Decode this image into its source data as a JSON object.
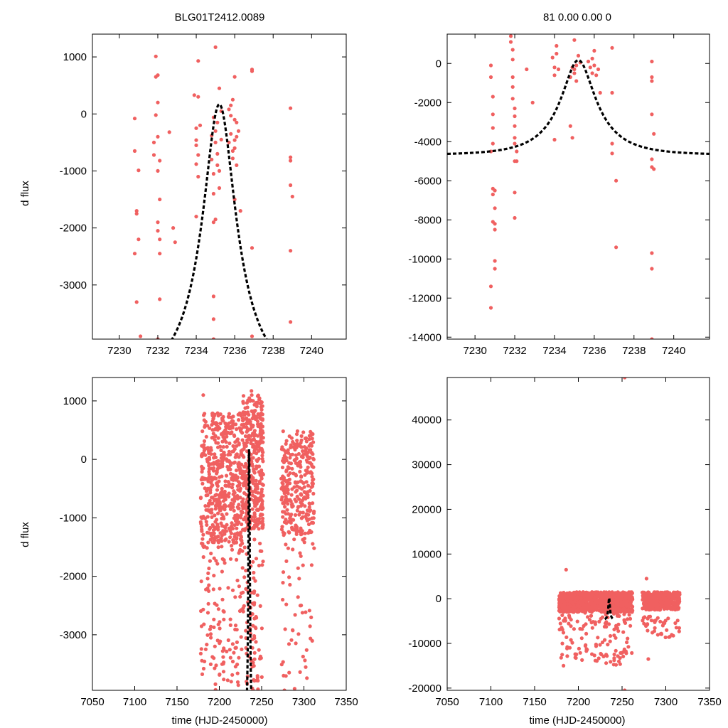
{
  "titles": {
    "left": "BLG01T2412.0089",
    "right": "81  0.00  0.00  0"
  },
  "point_color": "#f06060",
  "model_color": "#000000",
  "chart_data": [
    {
      "type": "scatter",
      "title": "BLG01T2412.0089",
      "xlabel": "",
      "ylabel": "d flux",
      "xlim": [
        7228.6,
        7241.8
      ],
      "ylim": [
        -3950,
        1400
      ],
      "xticks": [
        7230,
        7232,
        7234,
        7236,
        7238,
        7240
      ],
      "yticks": [
        -3000,
        -2000,
        -1000,
        0,
        1000
      ],
      "grid": false,
      "model": {
        "type": "paczynski",
        "t0": 7235.2,
        "u0": 0.36,
        "tE": 2.4,
        "base": -4680,
        "amp": 4850
      },
      "points": [
        [
          7230.8,
          -80
        ],
        [
          7230.8,
          -650
        ],
        [
          7230.9,
          -1700
        ],
        [
          7230.9,
          -1750
        ],
        [
          7230.8,
          -2450
        ],
        [
          7230.9,
          -3300
        ],
        [
          7231.0,
          -990
        ],
        [
          7231.0,
          -2200
        ],
        [
          7231.1,
          -3900
        ],
        [
          7231.8,
          -720
        ],
        [
          7231.8,
          -500
        ],
        [
          7231.9,
          1010
        ],
        [
          7231.9,
          650
        ],
        [
          7231.9,
          -20
        ],
        [
          7232.0,
          680
        ],
        [
          7232.0,
          200
        ],
        [
          7232.0,
          -400
        ],
        [
          7232.0,
          -1000
        ],
        [
          7232.1,
          -820
        ],
        [
          7232.1,
          -1500
        ],
        [
          7232.0,
          -1900
        ],
        [
          7232.0,
          -2050
        ],
        [
          7232.1,
          -2200
        ],
        [
          7232.1,
          -2450
        ],
        [
          7232.1,
          -3250
        ],
        [
          7232.0,
          -3950
        ],
        [
          7232.6,
          -320
        ],
        [
          7232.8,
          -2000
        ],
        [
          7232.9,
          -2250
        ],
        [
          7233.9,
          330
        ],
        [
          7234.0,
          -250
        ],
        [
          7234.0,
          -550
        ],
        [
          7234.0,
          -880
        ],
        [
          7234.1,
          930
        ],
        [
          7234.1,
          300
        ],
        [
          7234.0,
          -1800
        ],
        [
          7234.1,
          -1100
        ],
        [
          7234.0,
          -460
        ],
        [
          7234.1,
          -720
        ],
        [
          7234.2,
          -200
        ],
        [
          7234.8,
          -800
        ],
        [
          7234.8,
          -380
        ],
        [
          7234.9,
          -60
        ],
        [
          7234.9,
          -1050
        ],
        [
          7234.9,
          -1400
        ],
        [
          7234.9,
          -1900
        ],
        [
          7234.9,
          -3200
        ],
        [
          7234.9,
          -3600
        ],
        [
          7235.0,
          1170
        ],
        [
          7235.0,
          -1850
        ],
        [
          7235.0,
          -500
        ],
        [
          7235.0,
          -300
        ],
        [
          7235.1,
          -900
        ],
        [
          7235.1,
          -700
        ],
        [
          7235.1,
          -150
        ],
        [
          7235.2,
          450
        ],
        [
          7235.2,
          -1300
        ],
        [
          7235.2,
          -1000
        ],
        [
          7235.3,
          50
        ],
        [
          7235.3,
          -450
        ],
        [
          7234.9,
          -3950
        ],
        [
          7235.7,
          80
        ],
        [
          7235.7,
          -500
        ],
        [
          7235.8,
          150
        ],
        [
          7235.8,
          -30
        ],
        [
          7235.8,
          -350
        ],
        [
          7235.9,
          -650
        ],
        [
          7235.9,
          -780
        ],
        [
          7235.9,
          250
        ],
        [
          7236.0,
          650
        ],
        [
          7236.0,
          -100
        ],
        [
          7236.0,
          -460
        ],
        [
          7236.0,
          -600
        ],
        [
          7236.0,
          -1500
        ],
        [
          7236.1,
          -150
        ],
        [
          7236.1,
          -400
        ],
        [
          7236.1,
          -900
        ],
        [
          7236.2,
          -300
        ],
        [
          7236.3,
          -1700
        ],
        [
          7236.9,
          780
        ],
        [
          7236.9,
          750
        ],
        [
          7236.9,
          -2350
        ],
        [
          7236.9,
          -3900
        ],
        [
          7238.9,
          100
        ],
        [
          7238.9,
          -760
        ],
        [
          7238.9,
          -820
        ],
        [
          7238.9,
          -1250
        ],
        [
          7239.0,
          -1450
        ],
        [
          7238.9,
          -2400
        ],
        [
          7238.9,
          -3650
        ]
      ]
    },
    {
      "type": "scatter",
      "title": "81  0.00  0.00  0",
      "xlabel": "",
      "ylabel": "",
      "xlim": [
        7228.6,
        7241.8
      ],
      "ylim": [
        -14100,
        1500
      ],
      "xticks": [
        7230,
        7232,
        7234,
        7236,
        7238,
        7240
      ],
      "yticks": [
        -14000,
        -12000,
        -10000,
        -8000,
        -6000,
        -4000,
        -2000,
        0
      ],
      "grid": false,
      "model": {
        "type": "paczynski",
        "t0": 7235.2,
        "u0": 0.36,
        "tE": 2.4,
        "base": -4680,
        "amp": 4850
      },
      "points": [
        [
          7230.8,
          -100
        ],
        [
          7230.8,
          -700
        ],
        [
          7230.9,
          -1700
        ],
        [
          7230.9,
          -2600
        ],
        [
          7230.9,
          -3300
        ],
        [
          7230.9,
          -4100
        ],
        [
          7230.8,
          -4500
        ],
        [
          7230.9,
          -6400
        ],
        [
          7230.9,
          -6700
        ],
        [
          7231.0,
          -6500
        ],
        [
          7231.0,
          -7400
        ],
        [
          7230.9,
          -8100
        ],
        [
          7231.0,
          -8200
        ],
        [
          7231.0,
          -8500
        ],
        [
          7231.0,
          -10100
        ],
        [
          7231.0,
          -10500
        ],
        [
          7230.8,
          -11400
        ],
        [
          7230.8,
          -12500
        ],
        [
          7231.8,
          1400
        ],
        [
          7231.8,
          1100
        ],
        [
          7231.9,
          700
        ],
        [
          7231.9,
          200
        ],
        [
          7231.9,
          -700
        ],
        [
          7231.9,
          -1200
        ],
        [
          7231.9,
          -1800
        ],
        [
          7232.0,
          -2300
        ],
        [
          7232.0,
          -2700
        ],
        [
          7232.0,
          -3200
        ],
        [
          7232.0,
          -3800
        ],
        [
          7232.0,
          -4100
        ],
        [
          7232.1,
          -4500
        ],
        [
          7232.0,
          -5000
        ],
        [
          7232.1,
          -5000
        ],
        [
          7232.0,
          -6600
        ],
        [
          7232.0,
          -7900
        ],
        [
          7232.6,
          -300
        ],
        [
          7232.9,
          -2000
        ],
        [
          7233.9,
          300
        ],
        [
          7234.0,
          -200
        ],
        [
          7234.0,
          -600
        ],
        [
          7234.0,
          -3900
        ],
        [
          7234.1,
          900
        ],
        [
          7234.1,
          500
        ],
        [
          7234.2,
          -300
        ],
        [
          7234.8,
          -700
        ],
        [
          7234.8,
          -3200
        ],
        [
          7234.9,
          -3800
        ],
        [
          7234.9,
          -200
        ],
        [
          7235.0,
          1200
        ],
        [
          7235.0,
          -300
        ],
        [
          7235.0,
          -500
        ],
        [
          7235.1,
          -900
        ],
        [
          7235.1,
          -100
        ],
        [
          7235.2,
          400
        ],
        [
          7235.3,
          50
        ],
        [
          7235.7,
          100
        ],
        [
          7235.8,
          -200
        ],
        [
          7235.9,
          -500
        ],
        [
          7235.9,
          250
        ],
        [
          7236.0,
          650
        ],
        [
          7236.0,
          -100
        ],
        [
          7236.1,
          -600
        ],
        [
          7236.2,
          -300
        ],
        [
          7236.3,
          -1500
        ],
        [
          7236.9,
          800
        ],
        [
          7236.9,
          -1500
        ],
        [
          7236.9,
          -4100
        ],
        [
          7236.9,
          -4600
        ],
        [
          7237.1,
          -6000
        ],
        [
          7237.1,
          -9400
        ],
        [
          7238.9,
          100
        ],
        [
          7238.9,
          -700
        ],
        [
          7238.9,
          -900
        ],
        [
          7238.9,
          -2600
        ],
        [
          7239.0,
          -3600
        ],
        [
          7238.9,
          -4900
        ],
        [
          7238.9,
          -5300
        ],
        [
          7239.0,
          -5400
        ],
        [
          7238.9,
          -9700
        ],
        [
          7238.9,
          -10500
        ],
        [
          7238.9,
          -14100
        ]
      ]
    },
    {
      "type": "scatter",
      "title": "",
      "xlabel": "time (HJD-2450000)",
      "ylabel": "d flux",
      "xlim": [
        7050,
        7350
      ],
      "ylim": [
        -3950,
        1400
      ],
      "xticks": [
        7050,
        7100,
        7150,
        7200,
        7250,
        7300,
        7350
      ],
      "yticks": [
        -3000,
        -2000,
        -1000,
        0,
        1000
      ],
      "grid": false,
      "model": {
        "type": "paczynski",
        "t0": 7235.2,
        "u0": 0.36,
        "tE": 2.4,
        "base": -4680,
        "amp": 4850
      },
      "clusters": [
        {
          "x": [
            7178,
            7228
          ],
          "y": [
            -1500,
            800
          ],
          "n": 520,
          "seed": 11
        },
        {
          "x": [
            7178,
            7228
          ],
          "y": [
            -3950,
            -1500
          ],
          "n": 120,
          "seed": 12
        },
        {
          "x": [
            7228,
            7252
          ],
          "y": [
            -1200,
            1100
          ],
          "n": 360,
          "seed": 13
        },
        {
          "x": [
            7228,
            7252
          ],
          "y": [
            -3950,
            -1200
          ],
          "n": 80,
          "seed": 14
        },
        {
          "x": [
            7273,
            7312
          ],
          "y": [
            -1300,
            500
          ],
          "n": 300,
          "seed": 15
        },
        {
          "x": [
            7273,
            7312
          ],
          "y": [
            -3950,
            -1300
          ],
          "n": 50,
          "seed": 16
        }
      ],
      "points": [
        [
          7181,
          1100
        ],
        [
          7238,
          1170
        ],
        [
          7276,
          -3700
        ],
        [
          7277,
          -3950
        ],
        [
          7232,
          -3800
        ],
        [
          7240,
          -3950
        ],
        [
          7312,
          -1520
        ]
      ]
    },
    {
      "type": "scatter",
      "title": "",
      "xlabel": "time (HJD-2450000)",
      "ylabel": "",
      "xlim": [
        7050,
        7350
      ],
      "ylim": [
        -20500,
        49500
      ],
      "xticks": [
        7050,
        7100,
        7150,
        7200,
        7250,
        7300,
        7350
      ],
      "yticks": [
        -20000,
        -10000,
        0,
        10000,
        20000,
        30000,
        40000
      ],
      "grid": false,
      "model": {
        "type": "paczynski",
        "t0": 7235.2,
        "u0": 0.36,
        "tE": 2.4,
        "base": -4680,
        "amp": 4850
      },
      "clusters": [
        {
          "x": [
            7178,
            7228
          ],
          "y": [
            -3000,
            1500
          ],
          "n": 520,
          "seed": 21
        },
        {
          "x": [
            7178,
            7228
          ],
          "y": [
            -14000,
            -3000
          ],
          "n": 70,
          "seed": 22
        },
        {
          "x": [
            7228,
            7262
          ],
          "y": [
            -3000,
            1500
          ],
          "n": 380,
          "seed": 23
        },
        {
          "x": [
            7228,
            7262
          ],
          "y": [
            -15000,
            -3000
          ],
          "n": 60,
          "seed": 24
        },
        {
          "x": [
            7273,
            7316
          ],
          "y": [
            -2500,
            1500
          ],
          "n": 360,
          "seed": 25
        },
        {
          "x": [
            7273,
            7316
          ],
          "y": [
            -9000,
            -2500
          ],
          "n": 40,
          "seed": 26
        }
      ],
      "points": [
        [
          7186,
          6500
        ],
        [
          7278,
          4500
        ],
        [
          7253,
          49500
        ],
        [
          7253,
          -20500
        ],
        [
          7183,
          -15000
        ],
        [
          7280,
          -13500
        ]
      ]
    }
  ]
}
